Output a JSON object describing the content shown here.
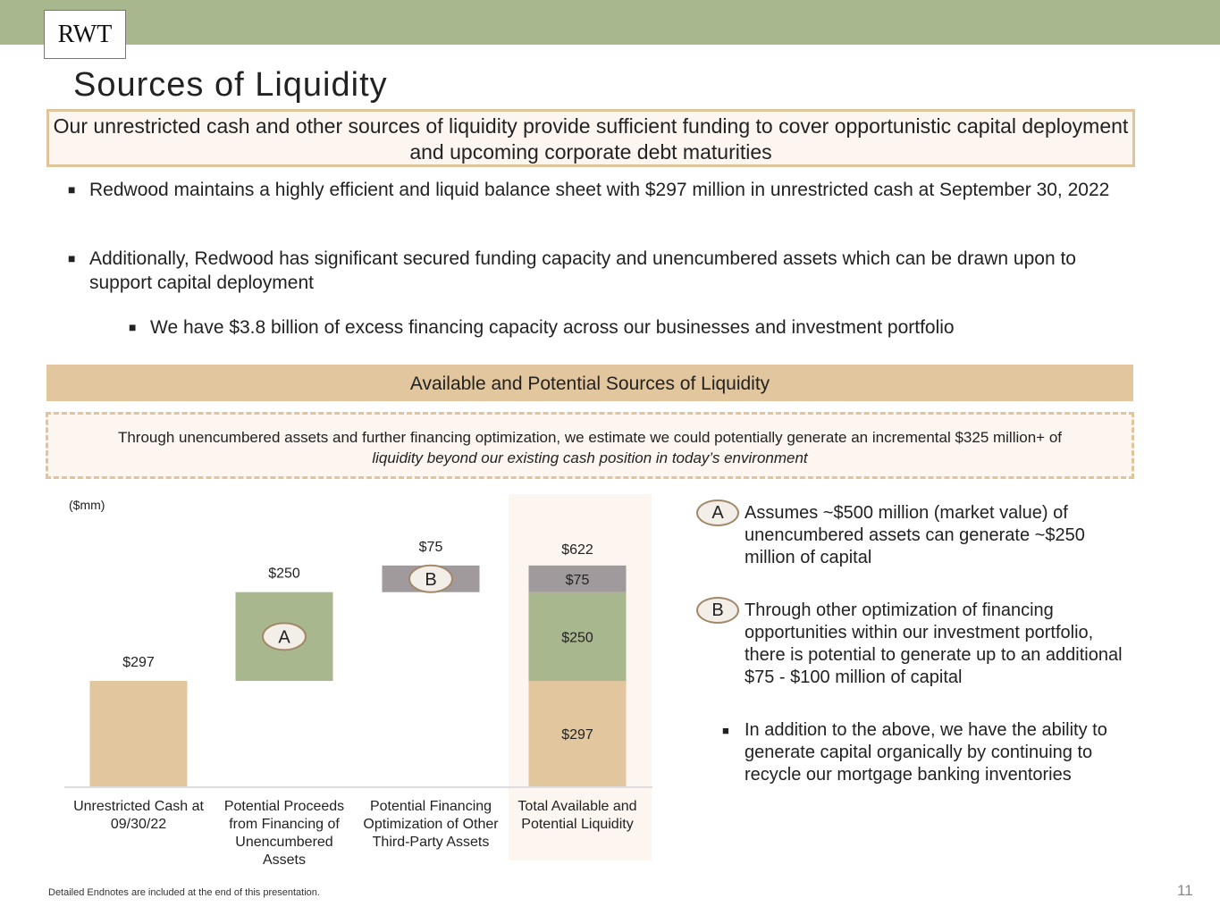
{
  "header": {
    "logo": "RWT",
    "title": "Sources of Liquidity"
  },
  "callout": "Our unrestricted cash and other sources of liquidity provide sufficient funding to cover opportunistic capital deployment and upcoming corporate debt maturities",
  "bullets": [
    "Redwood maintains a highly efficient and liquid balance sheet with $297 million in unrestricted cash at September 30, 2022",
    "Additionally, Redwood has significant secured funding capacity and unencumbered assets which can be drawn upon to support capital deployment",
    "We have $3.8 billion of excess financing capacity across our businesses and investment portfolio"
  ],
  "section_title": "Available and Potential Sources of Liquidity",
  "estimate": {
    "line1": "Through unencumbered assets and further financing optimization, we estimate we could potentially generate an incremental $325 million+ of",
    "line2": "liquidity beyond our existing cash position in today’s environment"
  },
  "notes": {
    "a_badge": "A",
    "a_text": "Assumes ~$500 million (market value) of unencumbered assets can generate ~$250 million of capital",
    "b_badge": "B",
    "b_text": "Through other optimization of financing opportunities within our investment portfolio, there is potential to generate up to an additional $75 - $100 million of capital",
    "c_text": "In addition to the above, we have the ability to generate capital organically by continuing to recycle our mortgage banking inventories"
  },
  "footer": {
    "endnote": "Detailed Endnotes are included at the end of this presentation.",
    "page": "11"
  },
  "chart_data": {
    "type": "bar",
    "subtype": "waterfall",
    "unit_label": "($mm)",
    "categories": [
      [
        "Unrestricted Cash at",
        "09/30/22"
      ],
      [
        "Potential Proceeds",
        "from Financing of",
        "Unencumbered",
        "Assets"
      ],
      [
        "Potential Financing",
        "Optimization of Other",
        "Third-Party Assets"
      ],
      [
        "Total Available and",
        "Potential Liquidity"
      ]
    ],
    "waterfall": [
      {
        "base": 0,
        "value": 297,
        "label": "$297",
        "color": "#e1c69e"
      },
      {
        "base": 297,
        "value": 250,
        "label": "$250",
        "color": "#a9b78f",
        "badge": "A"
      },
      {
        "base": 547,
        "value": 75,
        "label": "$75",
        "color": "#a09a9c",
        "badge": "B"
      }
    ],
    "total": {
      "label": "$622",
      "segments": [
        {
          "value": 297,
          "label": "$297",
          "color": "#e1c69e"
        },
        {
          "value": 250,
          "label": "$250",
          "color": "#a9b78f"
        },
        {
          "value": 75,
          "label": "$75",
          "color": "#a09a9c"
        }
      ]
    },
    "ylim": [
      0,
      700
    ],
    "highlight_color": "#fdf5ef"
  }
}
